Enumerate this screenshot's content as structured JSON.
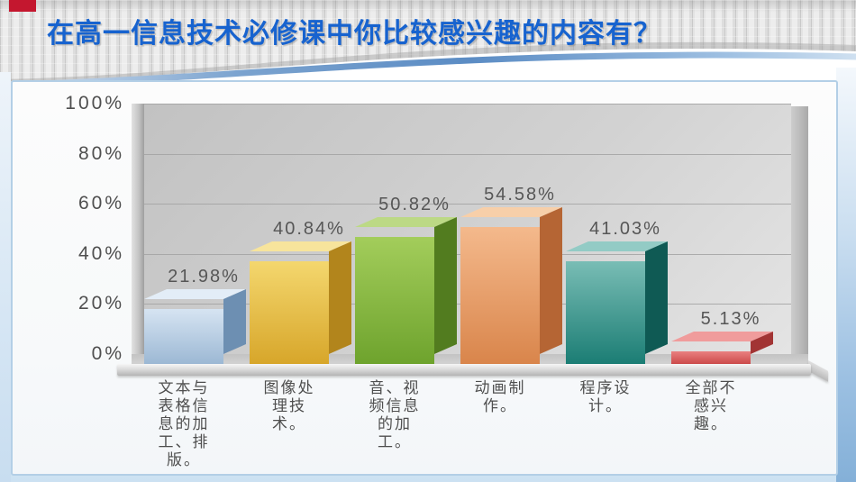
{
  "slide": {
    "title": "在高一信息技术必修课中你比较感兴趣的内容有？",
    "accent_colors": {
      "title_blue": "#1763cf",
      "corner_red": "#c4172f",
      "card_border_blue": "#b3cfe6",
      "swoosh_blue": "#5b8cc4"
    }
  },
  "chart_data": {
    "type": "bar",
    "title": "",
    "xlabel": "",
    "ylabel": "",
    "categories": [
      "文本与表格信息的加工、排版。",
      "图像处理技术。",
      "音、视频信息的加工。",
      "动画制作。",
      "程序设计。",
      "全部不感兴趣。"
    ],
    "categories_wrapped": [
      "文本与\n表格信\n息的加\n工、排\n版。",
      "图像处\n理技\n术。",
      "音、视\n频信息\n的加\n工。",
      "动画制\n作。",
      "程序设\n计。",
      "全部不\n感兴\n趣。"
    ],
    "values": [
      21.98,
      40.84,
      50.82,
      54.58,
      41.03,
      5.13
    ],
    "data_labels": [
      "21.98%",
      "40.84%",
      "50.82%",
      "54.58%",
      "41.03%",
      "5.13%"
    ],
    "ylim": [
      0,
      100
    ],
    "y_ticks": [
      0,
      20,
      40,
      60,
      80,
      100
    ],
    "y_tick_labels": [
      "0%",
      "20%",
      "40%",
      "60%",
      "80%",
      "100%"
    ],
    "grid": true,
    "legend": false,
    "projection": "3d",
    "bar_styles": [
      {
        "front_top": "#d6e4f2",
        "front_bottom": "#9cb8d4",
        "side": "#6d8fb2",
        "top": "#e3edf7"
      },
      {
        "front_top": "#f4d76e",
        "front_bottom": "#d7a62a",
        "side": "#b2851c",
        "top": "#f7e49c"
      },
      {
        "front_top": "#a3cd5b",
        "front_bottom": "#6ea32d",
        "side": "#527c1f",
        "top": "#bcd985"
      },
      {
        "front_top": "#f4b98c",
        "front_bottom": "#d9854b",
        "side": "#b56534",
        "top": "#f7cfa9"
      },
      {
        "front_top": "#79bdb5",
        "front_bottom": "#1b7d74",
        "side": "#0f5a54",
        "top": "#93cbc5"
      },
      {
        "front_top": "#e98080",
        "front_bottom": "#cc4a4a",
        "side": "#a23434",
        "top": "#f09c9c"
      }
    ],
    "label_color": "#565656",
    "axis_color": "#4f4f4f"
  }
}
